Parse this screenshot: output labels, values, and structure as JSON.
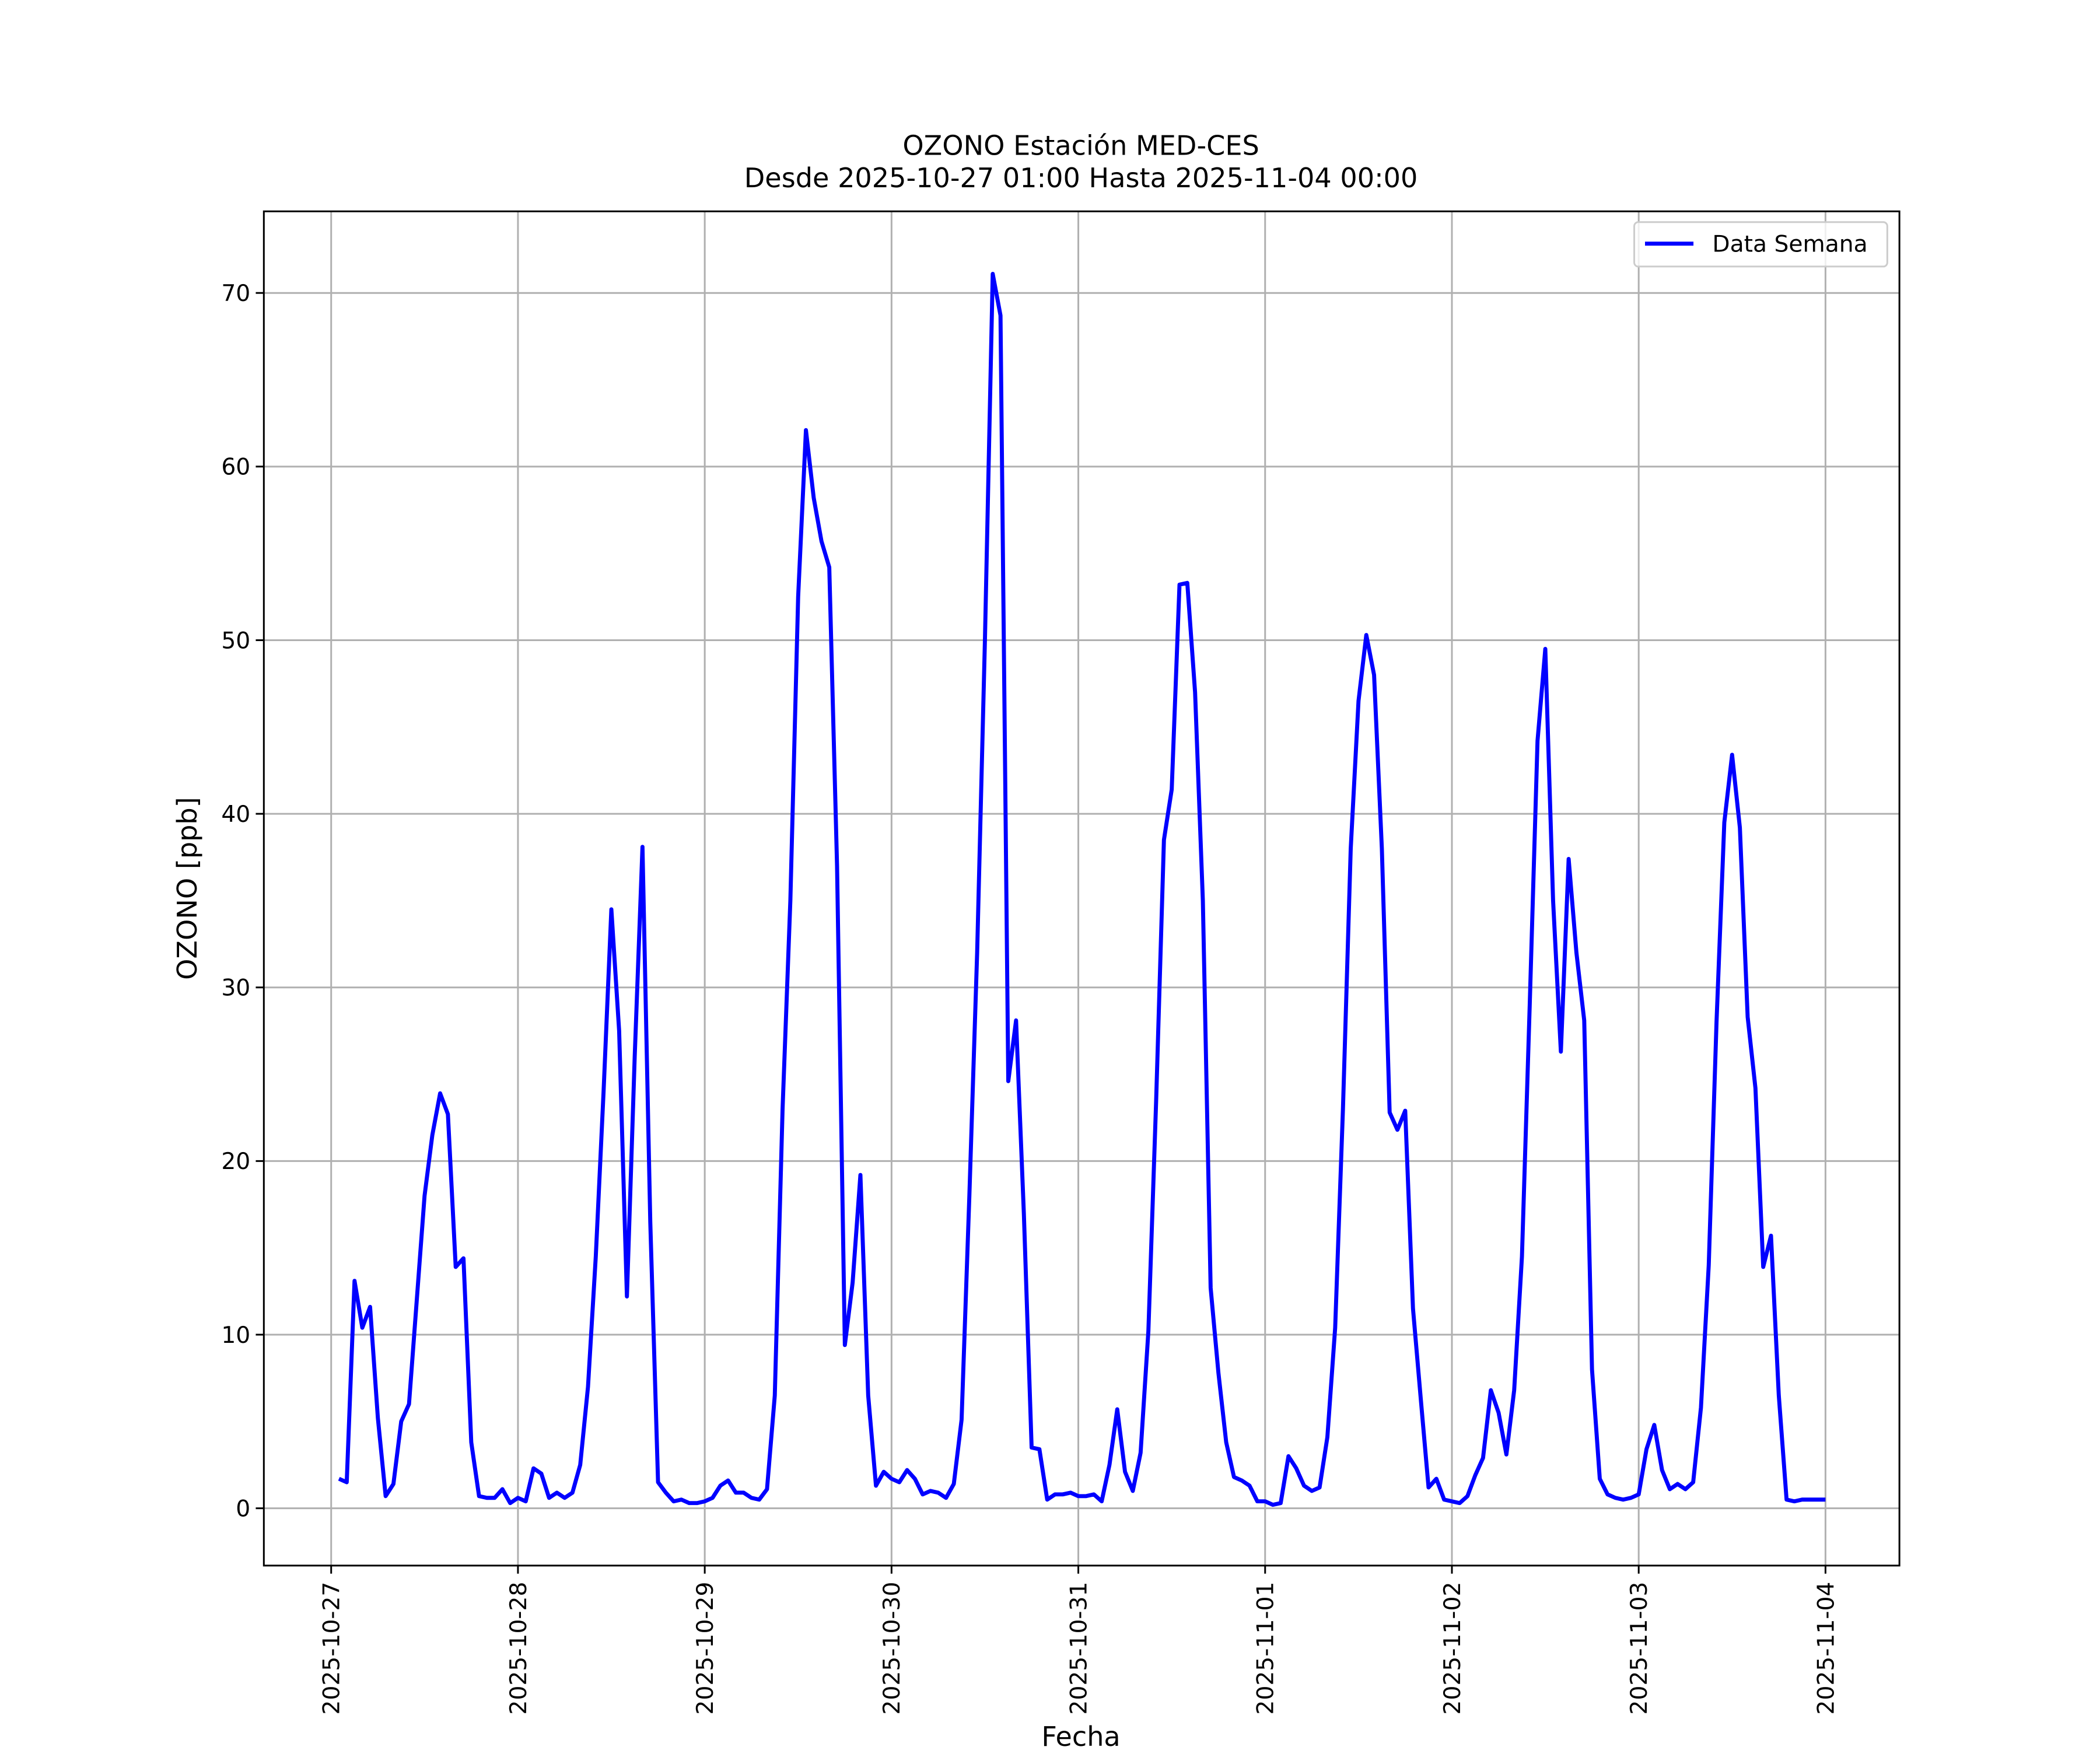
{
  "chart_data": {
    "type": "line",
    "title": "OZONO Estación MED-CES",
    "subtitle": "Desde 2025-10-27 01:00 Hasta 2025-11-04 00:00",
    "x_label": "Fecha",
    "y_label": "OZONO [ppb]",
    "x": [
      "2025-10-27 01:00",
      "2025-10-27 02:00",
      "2025-10-27 03:00",
      "2025-10-27 04:00",
      "2025-10-27 05:00",
      "2025-10-27 06:00",
      "2025-10-27 07:00",
      "2025-10-27 08:00",
      "2025-10-27 09:00",
      "2025-10-27 10:00",
      "2025-10-27 11:00",
      "2025-10-27 12:00",
      "2025-10-27 13:00",
      "2025-10-27 14:00",
      "2025-10-27 15:00",
      "2025-10-27 16:00",
      "2025-10-27 17:00",
      "2025-10-27 18:00",
      "2025-10-27 19:00",
      "2025-10-27 20:00",
      "2025-10-27 21:00",
      "2025-10-27 22:00",
      "2025-10-27 23:00",
      "2025-10-28 00:00",
      "2025-10-28 01:00",
      "2025-10-28 02:00",
      "2025-10-28 03:00",
      "2025-10-28 04:00",
      "2025-10-28 05:00",
      "2025-10-28 06:00",
      "2025-10-28 07:00",
      "2025-10-28 08:00",
      "2025-10-28 09:00",
      "2025-10-28 10:00",
      "2025-10-28 11:00",
      "2025-10-28 12:00",
      "2025-10-28 13:00",
      "2025-10-28 14:00",
      "2025-10-28 15:00",
      "2025-10-28 16:00",
      "2025-10-28 17:00",
      "2025-10-28 18:00",
      "2025-10-28 19:00",
      "2025-10-28 20:00",
      "2025-10-28 21:00",
      "2025-10-28 22:00",
      "2025-10-28 23:00",
      "2025-10-29 00:00",
      "2025-10-29 01:00",
      "2025-10-29 02:00",
      "2025-10-29 03:00",
      "2025-10-29 04:00",
      "2025-10-29 05:00",
      "2025-10-29 06:00",
      "2025-10-29 07:00",
      "2025-10-29 08:00",
      "2025-10-29 09:00",
      "2025-10-29 10:00",
      "2025-10-29 11:00",
      "2025-10-29 12:00",
      "2025-10-29 13:00",
      "2025-10-29 14:00",
      "2025-10-29 15:00",
      "2025-10-29 16:00",
      "2025-10-29 17:00",
      "2025-10-29 18:00",
      "2025-10-29 19:00",
      "2025-10-29 20:00",
      "2025-10-29 21:00",
      "2025-10-29 22:00",
      "2025-10-29 23:00",
      "2025-10-30 00:00",
      "2025-10-30 01:00",
      "2025-10-30 02:00",
      "2025-10-30 03:00",
      "2025-10-30 04:00",
      "2025-10-30 05:00",
      "2025-10-30 06:00",
      "2025-10-30 07:00",
      "2025-10-30 08:00",
      "2025-10-30 09:00",
      "2025-10-30 10:00",
      "2025-10-30 11:00",
      "2025-10-30 12:00",
      "2025-10-30 13:00",
      "2025-10-30 14:00",
      "2025-10-30 15:00",
      "2025-10-30 16:00",
      "2025-10-30 17:00",
      "2025-10-30 18:00",
      "2025-10-30 19:00",
      "2025-10-30 20:00",
      "2025-10-30 21:00",
      "2025-10-30 22:00",
      "2025-10-30 23:00",
      "2025-10-31 00:00",
      "2025-10-31 01:00",
      "2025-10-31 02:00",
      "2025-10-31 03:00",
      "2025-10-31 04:00",
      "2025-10-31 05:00",
      "2025-10-31 06:00",
      "2025-10-31 07:00",
      "2025-10-31 08:00",
      "2025-10-31 09:00",
      "2025-10-31 10:00",
      "2025-10-31 11:00",
      "2025-10-31 12:00",
      "2025-10-31 13:00",
      "2025-10-31 14:00",
      "2025-10-31 15:00",
      "2025-10-31 16:00",
      "2025-10-31 17:00",
      "2025-10-31 18:00",
      "2025-10-31 19:00",
      "2025-10-31 20:00",
      "2025-10-31 21:00",
      "2025-10-31 22:00",
      "2025-10-31 23:00",
      "2025-11-01 00:00",
      "2025-11-01 01:00",
      "2025-11-01 02:00",
      "2025-11-01 03:00",
      "2025-11-01 04:00",
      "2025-11-01 05:00",
      "2025-11-01 06:00",
      "2025-11-01 07:00",
      "2025-11-01 08:00",
      "2025-11-01 09:00",
      "2025-11-01 10:00",
      "2025-11-01 11:00",
      "2025-11-01 12:00",
      "2025-11-01 13:00",
      "2025-11-01 14:00",
      "2025-11-01 15:00",
      "2025-11-01 16:00",
      "2025-11-01 17:00",
      "2025-11-01 18:00",
      "2025-11-01 19:00",
      "2025-11-01 20:00",
      "2025-11-01 21:00",
      "2025-11-01 22:00",
      "2025-11-01 23:00",
      "2025-11-02 00:00",
      "2025-11-02 01:00",
      "2025-11-02 02:00",
      "2025-11-02 03:00",
      "2025-11-02 04:00",
      "2025-11-02 05:00",
      "2025-11-02 06:00",
      "2025-11-02 07:00",
      "2025-11-02 08:00",
      "2025-11-02 09:00",
      "2025-11-02 10:00",
      "2025-11-02 11:00",
      "2025-11-02 12:00",
      "2025-11-02 13:00",
      "2025-11-02 14:00",
      "2025-11-02 15:00",
      "2025-11-02 16:00",
      "2025-11-02 17:00",
      "2025-11-02 18:00",
      "2025-11-02 19:00",
      "2025-11-02 20:00",
      "2025-11-02 21:00",
      "2025-11-02 22:00",
      "2025-11-02 23:00",
      "2025-11-03 00:00",
      "2025-11-03 01:00",
      "2025-11-03 02:00",
      "2025-11-03 03:00",
      "2025-11-03 04:00",
      "2025-11-03 05:00",
      "2025-11-03 06:00",
      "2025-11-03 07:00",
      "2025-11-03 08:00",
      "2025-11-03 09:00",
      "2025-11-03 10:00",
      "2025-11-03 11:00",
      "2025-11-03 12:00",
      "2025-11-03 13:00",
      "2025-11-03 14:00",
      "2025-11-03 15:00",
      "2025-11-03 16:00",
      "2025-11-03 17:00",
      "2025-11-03 18:00",
      "2025-11-03 19:00",
      "2025-11-03 20:00",
      "2025-11-03 21:00",
      "2025-11-03 22:00",
      "2025-11-03 23:00",
      "2025-11-04 00:00"
    ],
    "series": [
      {
        "name": "Data Semana",
        "color": "#0000ff",
        "values": [
          1.7,
          1.5,
          13.1,
          10.4,
          11.6,
          5.2,
          0.7,
          1.4,
          5.0,
          6.0,
          12,
          18,
          21.5,
          23.9,
          22.7,
          13.9,
          14.4,
          3.8,
          0.7,
          0.6,
          0.6,
          1.1,
          0.3,
          0.6,
          0.4,
          2.3,
          2.0,
          0.6,
          0.9,
          0.6,
          0.9,
          2.5,
          7,
          14.5,
          24,
          34.5,
          27.5,
          12.2,
          26,
          38.1,
          16.5,
          1.5,
          0.9,
          0.4,
          0.5,
          0.3,
          0.3,
          0.4,
          0.6,
          1.3,
          1.6,
          0.9,
          0.9,
          0.6,
          0.5,
          1.1,
          6.5,
          23,
          35,
          52.5,
          62.1,
          58.2,
          55.7,
          54.2,
          37,
          9.4,
          13,
          19.2,
          6.5,
          1.3,
          2.1,
          1.7,
          1.5,
          2.2,
          1.7,
          0.8,
          1.0,
          0.9,
          0.6,
          1.4,
          5.1,
          18,
          32,
          50,
          71.1,
          68.7,
          24.6,
          28.1,
          17,
          3.5,
          3.4,
          0.5,
          0.8,
          0.8,
          0.9,
          0.7,
          0.7,
          0.8,
          0.4,
          2.5,
          5.7,
          2.1,
          1.0,
          3.2,
          10.2,
          23.5,
          38.5,
          41.4,
          53.2,
          53.3,
          47,
          35,
          12.7,
          7.8,
          3.8,
          1.8,
          1.6,
          1.3,
          0.4,
          0.4,
          0.2,
          0.3,
          3.0,
          2.3,
          1.3,
          1.0,
          1.2,
          4.1,
          10.4,
          23,
          38,
          46.5,
          50.3,
          48,
          38,
          22.8,
          21.8,
          22.9,
          11.5,
          6.3,
          1.2,
          1.7,
          0.5,
          0.4,
          0.3,
          0.7,
          1.9,
          2.9,
          6.8,
          5.5,
          3.1,
          6.8,
          14.5,
          29,
          44.2,
          49.5,
          35,
          26.3,
          37.4,
          32,
          28.1,
          8,
          1.7,
          0.8,
          0.6,
          0.5,
          0.6,
          0.8,
          3.4,
          4.8,
          2.2,
          1.1,
          1.4,
          1.1,
          1.5,
          5.8,
          14,
          28,
          39.5,
          43.4,
          39.2,
          28.3,
          24.2,
          13.9,
          15.7,
          6.5,
          0.5,
          0.4,
          0.5,
          0.5,
          0.5,
          0.5
        ]
      }
    ],
    "xlim": [
      "2025-10-26 15:21",
      "2025-11-04 09:30"
    ],
    "xticks": [
      "2025-10-27",
      "2025-10-28",
      "2025-10-29",
      "2025-10-30",
      "2025-10-31",
      "2025-11-01",
      "2025-11-02",
      "2025-11-03",
      "2025-11-04"
    ],
    "ylim": [
      -3.3,
      74.7
    ],
    "yticks": [
      0,
      10,
      20,
      30,
      40,
      50,
      60,
      70
    ],
    "grid": true,
    "legend": "upper right"
  }
}
